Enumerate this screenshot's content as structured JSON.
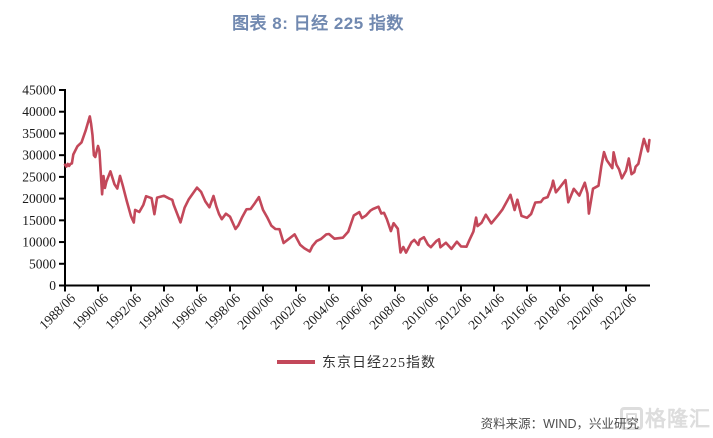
{
  "title": "图表 8: 日经 225 指数",
  "source_note": "资料来源：WIND，兴业研究",
  "watermark": {
    "text": "格隆汇"
  },
  "colors": {
    "line": "#C3485A",
    "title": "#7189B0",
    "axis": "#000000",
    "tick_label": "#1a1a1a",
    "watermark": "#dcdcdc"
  },
  "chart_data": {
    "type": "line",
    "title": "图表 8: 日经 225 指数",
    "xlabel": "",
    "ylabel": "",
    "ylim": [
      0,
      45000
    ],
    "y_ticks": [
      0,
      5000,
      10000,
      15000,
      20000,
      25000,
      30000,
      35000,
      40000,
      45000
    ],
    "x_ticks": [
      "1988/06",
      "1990/06",
      "1992/06",
      "1994/06",
      "1996/06",
      "1998/06",
      "2000/06",
      "2002/06",
      "2004/06",
      "2006/06",
      "2008/06",
      "2010/06",
      "2012/06",
      "2014/06",
      "2016/06",
      "2018/06",
      "2020/06",
      "2022/06"
    ],
    "x_tick_interval_months": 24,
    "grid": false,
    "legend_position": "bottom",
    "series": [
      {
        "name": "东京日经225指数",
        "color": "#C3485A",
        "points": [
          [
            "1988/06",
            27800
          ],
          [
            "1988/07",
            27366
          ],
          [
            "1988/08",
            27982
          ],
          [
            "1988/09",
            27520
          ],
          [
            "1988/10",
            27983
          ],
          [
            "1988/11",
            28100
          ],
          [
            "1988/12",
            30159
          ],
          [
            "1989/03",
            32030
          ],
          [
            "1989/06",
            32948
          ],
          [
            "1989/09",
            35636
          ],
          [
            "1989/12",
            38915
          ],
          [
            "1990/01",
            37188
          ],
          [
            "1990/02",
            34591
          ],
          [
            "1990/03",
            29980
          ],
          [
            "1990/04",
            29584
          ],
          [
            "1990/06",
            32117
          ],
          [
            "1990/07",
            31035
          ],
          [
            "1990/09",
            20983
          ],
          [
            "1990/10",
            25194
          ],
          [
            "1990/11",
            22454
          ],
          [
            "1990/12",
            23848
          ],
          [
            "1991/03",
            26292
          ],
          [
            "1991/06",
            23290
          ],
          [
            "1991/08",
            22335
          ],
          [
            "1991/10",
            25222
          ],
          [
            "1991/12",
            22983
          ],
          [
            "1992/03",
            19345
          ],
          [
            "1992/06",
            15951
          ],
          [
            "1992/08",
            14500
          ],
          [
            "1992/09",
            17399
          ],
          [
            "1992/12",
            16924
          ],
          [
            "1993/03",
            18591
          ],
          [
            "1993/05",
            20552
          ],
          [
            "1993/09",
            20105
          ],
          [
            "1993/11",
            16406
          ],
          [
            "1994/01",
            20229
          ],
          [
            "1994/06",
            20643
          ],
          [
            "1994/10",
            19989
          ],
          [
            "1994/12",
            19723
          ],
          [
            "1995/01",
            18649
          ],
          [
            "1995/06",
            14517
          ],
          [
            "1995/09",
            17913
          ],
          [
            "1995/12",
            19868
          ],
          [
            "1996/06",
            22530
          ],
          [
            "1996/09",
            21556
          ],
          [
            "1996/12",
            19361
          ],
          [
            "1997/03",
            18003
          ],
          [
            "1997/06",
            20604
          ],
          [
            "1997/08",
            18229
          ],
          [
            "1997/10",
            16458
          ],
          [
            "1997/12",
            15258
          ],
          [
            "1998/03",
            16527
          ],
          [
            "1998/06",
            15830
          ],
          [
            "1998/10",
            13000
          ],
          [
            "1998/12",
            13842
          ],
          [
            "1999/03",
            15836
          ],
          [
            "1999/06",
            17529
          ],
          [
            "1999/09",
            17605
          ],
          [
            "1999/12",
            18934
          ],
          [
            "2000/03",
            20337
          ],
          [
            "2000/06",
            17411
          ],
          [
            "2000/09",
            15747
          ],
          [
            "2000/12",
            13785
          ],
          [
            "2001/03",
            12999
          ],
          [
            "2001/06",
            12969
          ],
          [
            "2001/09",
            9774
          ],
          [
            "2001/12",
            10542
          ],
          [
            "2002/05",
            11763
          ],
          [
            "2002/09",
            9383
          ],
          [
            "2002/12",
            8578
          ],
          [
            "2003/04",
            7831
          ],
          [
            "2003/06",
            9083
          ],
          [
            "2003/09",
            10219
          ],
          [
            "2003/12",
            10676
          ],
          [
            "2004/04",
            11761
          ],
          [
            "2004/06",
            11858
          ],
          [
            "2004/10",
            10771
          ],
          [
            "2005/04",
            11008
          ],
          [
            "2005/08",
            12413
          ],
          [
            "2005/12",
            16111
          ],
          [
            "2006/04",
            16906
          ],
          [
            "2006/06",
            15505
          ],
          [
            "2006/09",
            16127
          ],
          [
            "2006/12",
            17225
          ],
          [
            "2007/02",
            17604
          ],
          [
            "2007/06",
            18138
          ],
          [
            "2007/08",
            16569
          ],
          [
            "2007/10",
            16737
          ],
          [
            "2007/12",
            15307
          ],
          [
            "2008/03",
            12525
          ],
          [
            "2008/05",
            14338
          ],
          [
            "2008/08",
            13072
          ],
          [
            "2008/10",
            7600
          ],
          [
            "2008/12",
            8859
          ],
          [
            "2009/02",
            7568
          ],
          [
            "2009/06",
            9958
          ],
          [
            "2009/08",
            10492
          ],
          [
            "2009/11",
            9345
          ],
          [
            "2009/12",
            10546
          ],
          [
            "2010/03",
            11089
          ],
          [
            "2010/06",
            9382
          ],
          [
            "2010/08",
            8824
          ],
          [
            "2010/12",
            10228
          ],
          [
            "2011/02",
            10624
          ],
          [
            "2011/03",
            8800
          ],
          [
            "2011/07",
            9833
          ],
          [
            "2011/11",
            8434
          ],
          [
            "2012/03",
            10083
          ],
          [
            "2012/06",
            9006
          ],
          [
            "2012/10",
            8928
          ],
          [
            "2012/12",
            10395
          ],
          [
            "2013/03",
            12397
          ],
          [
            "2013/05",
            15627
          ],
          [
            "2013/06",
            13677
          ],
          [
            "2013/09",
            14455
          ],
          [
            "2013/12",
            16291
          ],
          [
            "2014/04",
            14304
          ],
          [
            "2014/09",
            16173
          ],
          [
            "2014/12",
            17450
          ],
          [
            "2015/06",
            20868
          ],
          [
            "2015/09",
            17388
          ],
          [
            "2015/11",
            19747
          ],
          [
            "2016/02",
            16026
          ],
          [
            "2016/06",
            15575
          ],
          [
            "2016/09",
            16449
          ],
          [
            "2016/12",
            19114
          ],
          [
            "2017/04",
            19196
          ],
          [
            "2017/06",
            20033
          ],
          [
            "2017/09",
            20356
          ],
          [
            "2017/12",
            22764
          ],
          [
            "2018/01",
            24124
          ],
          [
            "2018/03",
            21454
          ],
          [
            "2018/05",
            22201
          ],
          [
            "2018/10",
            24270
          ],
          [
            "2018/12",
            19155
          ],
          [
            "2019/04",
            22258
          ],
          [
            "2019/08",
            20704
          ],
          [
            "2019/12",
            23656
          ],
          [
            "2020/02",
            21142
          ],
          [
            "2020/03",
            16552
          ],
          [
            "2020/06",
            22288
          ],
          [
            "2020/10",
            22977
          ],
          [
            "2020/12",
            27444
          ],
          [
            "2021/02",
            30714
          ],
          [
            "2021/04",
            28812
          ],
          [
            "2021/08",
            27013
          ],
          [
            "2021/09",
            30670
          ],
          [
            "2021/11",
            27821
          ],
          [
            "2022/01",
            26717
          ],
          [
            "2022/03",
            24681
          ],
          [
            "2022/06",
            26392
          ],
          [
            "2022/08",
            29222
          ],
          [
            "2022/10",
            25621
          ],
          [
            "2022/12",
            26094
          ],
          [
            "2023/01",
            27327
          ],
          [
            "2023/03",
            28041
          ],
          [
            "2023/05",
            30887
          ],
          [
            "2023/07",
            33753
          ],
          [
            "2023/10",
            30858
          ],
          [
            "2023/11",
            33486
          ]
        ]
      }
    ]
  }
}
